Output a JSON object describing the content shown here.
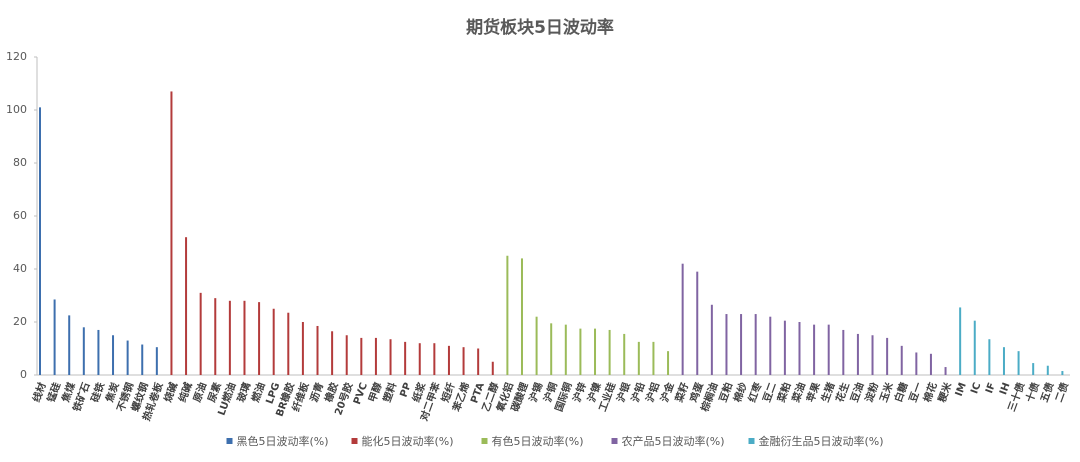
{
  "chart_data": {
    "type": "bar",
    "title": "期货板块5日波动率",
    "categories": [
      "线材",
      "锰硅",
      "焦煤",
      "铁矿石",
      "硅铁",
      "焦炭",
      "不锈钢",
      "螺纹钢",
      "热轧卷板",
      "烧碱",
      "纯碱",
      "原油",
      "尿素",
      "LU燃油",
      "玻璃",
      "燃油",
      "LPG",
      "BR橡胶",
      "纤维板",
      "沥青",
      "橡胶",
      "20号胶",
      "PVC",
      "甲醇",
      "塑料",
      "PP",
      "纸浆",
      "对二甲苯",
      "短纤",
      "苯乙烯",
      "PTA",
      "乙二醇",
      "氧化铝",
      "碳酸锂",
      "沪锡",
      "沪铜",
      "国际铜",
      "沪锌",
      "沪镍",
      "工业硅",
      "沪银",
      "沪铅",
      "沪铝",
      "沪金",
      "菜籽",
      "鸡蛋",
      "棕榈油",
      "豆粕",
      "棉纱",
      "红枣",
      "豆二",
      "菜粕",
      "菜油",
      "苹果",
      "生猪",
      "花生",
      "豆油",
      "淀粉",
      "玉米",
      "白糖",
      "豆一",
      "棉花",
      "粳米",
      "IM",
      "IC",
      "IF",
      "IH",
      "三十债",
      "十债",
      "五债",
      "二债"
    ],
    "series": [
      {
        "name": "黑色5日波动率(%)",
        "color": "#3d6fae",
        "values": [
          101,
          28.5,
          22.5,
          18,
          17,
          15,
          13,
          11.5,
          10.5,
          null,
          null,
          null,
          null,
          null,
          null,
          null,
          null,
          null,
          null,
          null,
          null,
          null,
          null,
          null,
          null,
          null,
          null,
          null,
          null,
          null,
          null,
          null,
          null,
          null,
          null,
          null,
          null,
          null,
          null,
          null,
          null,
          null,
          null,
          null,
          null,
          null,
          null,
          null,
          null,
          null,
          null,
          null,
          null,
          null,
          null,
          null,
          null,
          null,
          null,
          null,
          null,
          null,
          null,
          null,
          null,
          null,
          null,
          null,
          null,
          null,
          null
        ]
      },
      {
        "name": "能化5日波动率(%)",
        "color": "#b33b3b",
        "values": [
          null,
          null,
          null,
          null,
          null,
          null,
          null,
          null,
          null,
          107,
          52,
          31,
          29,
          28,
          28,
          27.5,
          25,
          23.5,
          20,
          18.5,
          16.5,
          15,
          14,
          14,
          13.5,
          12.5,
          12,
          12,
          11,
          10.5,
          10,
          5,
          null,
          null,
          null,
          null,
          null,
          null,
          null,
          null,
          null,
          null,
          null,
          null,
          null,
          null,
          null,
          null,
          null,
          null,
          null,
          null,
          null,
          null,
          null,
          null,
          null,
          null,
          null,
          null,
          null,
          null,
          null,
          null,
          null,
          null,
          null,
          null,
          null,
          null,
          null
        ]
      },
      {
        "name": "有色5日波动率(%)",
        "color": "#9bbb59",
        "values": [
          null,
          null,
          null,
          null,
          null,
          null,
          null,
          null,
          null,
          null,
          null,
          null,
          null,
          null,
          null,
          null,
          null,
          null,
          null,
          null,
          null,
          null,
          null,
          null,
          null,
          null,
          null,
          null,
          null,
          null,
          null,
          null,
          45,
          44,
          22,
          19.5,
          19,
          17.5,
          17.5,
          17,
          15.5,
          12.5,
          12.5,
          9,
          null,
          null,
          null,
          null,
          null,
          null,
          null,
          null,
          null,
          null,
          null,
          null,
          null,
          null,
          null,
          null,
          null,
          null,
          null,
          null,
          null,
          null,
          null,
          null,
          null,
          null,
          null
        ]
      },
      {
        "name": "农产品5日波动率(%)",
        "color": "#8064a2",
        "values": [
          null,
          null,
          null,
          null,
          null,
          null,
          null,
          null,
          null,
          null,
          null,
          null,
          null,
          null,
          null,
          null,
          null,
          null,
          null,
          null,
          null,
          null,
          null,
          null,
          null,
          null,
          null,
          null,
          null,
          null,
          null,
          null,
          null,
          null,
          null,
          null,
          null,
          null,
          null,
          null,
          null,
          null,
          null,
          null,
          42,
          39,
          26.5,
          23,
          23,
          23,
          22,
          20.5,
          20,
          19,
          19,
          17,
          15.5,
          15,
          14,
          11,
          8.5,
          8,
          3,
          null,
          null,
          null,
          null,
          null,
          null,
          null,
          null
        ]
      },
      {
        "name": "金融衍生品5日波动率(%)",
        "color": "#4bacc6",
        "values": [
          null,
          null,
          null,
          null,
          null,
          null,
          null,
          null,
          null,
          null,
          null,
          null,
          null,
          null,
          null,
          null,
          null,
          null,
          null,
          null,
          null,
          null,
          null,
          null,
          null,
          null,
          null,
          null,
          null,
          null,
          null,
          null,
          null,
          null,
          null,
          null,
          null,
          null,
          null,
          null,
          null,
          null,
          null,
          null,
          null,
          null,
          null,
          null,
          null,
          null,
          null,
          null,
          null,
          null,
          null,
          null,
          null,
          null,
          null,
          null,
          null,
          null,
          null,
          25.5,
          20.5,
          13.5,
          10.5,
          9,
          4.5,
          3.5,
          1.5
        ]
      }
    ],
    "ylim": [
      0,
      120
    ],
    "yticks": [
      0,
      20,
      40,
      60,
      80,
      100,
      120
    ],
    "grid": false
  }
}
